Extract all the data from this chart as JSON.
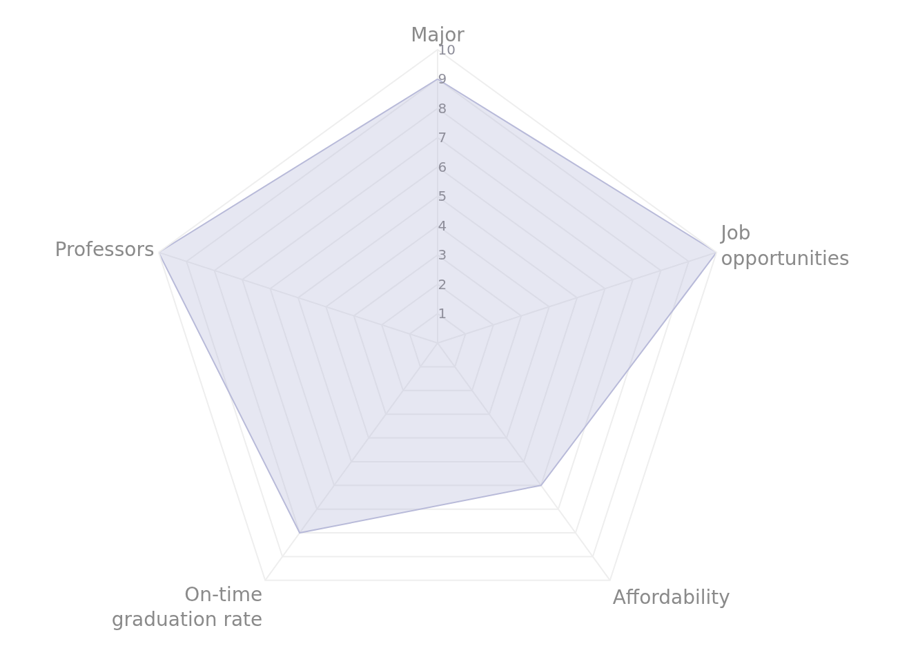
{
  "chart_data": {
    "type": "radar",
    "categories": [
      "Major",
      "Job opportunities",
      "Affordability",
      "On-time graduation rate",
      "Professors"
    ],
    "series": [
      {
        "color": "#b8bad9",
        "values": [
          9,
          10,
          6,
          8,
          10
        ]
      }
    ],
    "ylim": [
      0,
      10
    ],
    "yticks": [
      1,
      2,
      3,
      4,
      5,
      6,
      7,
      8,
      9,
      10
    ],
    "grid": true,
    "marker": "none",
    "line_style": "solid"
  }
}
